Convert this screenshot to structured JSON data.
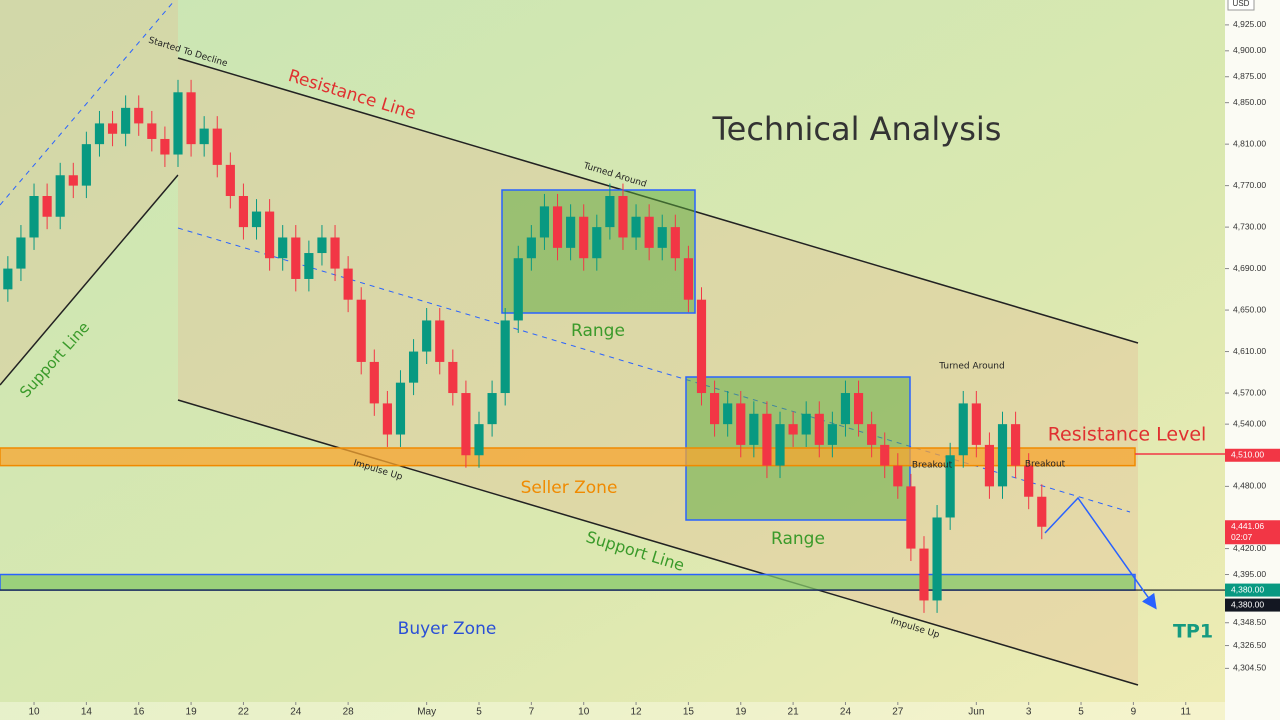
{
  "chart_data": {
    "type": "candlestick",
    "title": "Technical Analysis",
    "currency": "USD",
    "up_color": "#089981",
    "down_color": "#f23645",
    "x": [
      -1,
      -0.5,
      0,
      0.5,
      1,
      1.5,
      2,
      2.5,
      3,
      3.5,
      4,
      4.5,
      5,
      5.5,
      6,
      6.5,
      7,
      7.5,
      8,
      8.5,
      9,
      9.5,
      10,
      10.5,
      11,
      11.5,
      12,
      12.5,
      13,
      13.5,
      14,
      14.5,
      15,
      15.5,
      16,
      16.5,
      17,
      17.5,
      18,
      18.5,
      19,
      19.5,
      20,
      20.5,
      21,
      21.5,
      22,
      22.5,
      23,
      23.5,
      24,
      24.5,
      25,
      25.5,
      26,
      26.5,
      27,
      27.5,
      28,
      28.5,
      29,
      29.5,
      30,
      30.5,
      31,
      31.5,
      32,
      32.5,
      33,
      33.5,
      34,
      34.5,
      35,
      35.5,
      36,
      36.5,
      37,
      37.5,
      38,
      38.5
    ],
    "open": [
      4670,
      4690,
      4720,
      4760,
      4740,
      4780,
      4770,
      4810,
      4830,
      4820,
      4845,
      4830,
      4815,
      4800,
      4860,
      4810,
      4825,
      4790,
      4760,
      4730,
      4745,
      4700,
      4720,
      4680,
      4705,
      4720,
      4690,
      4660,
      4600,
      4560,
      4530,
      4580,
      4610,
      4640,
      4600,
      4570,
      4510,
      4540,
      4570,
      4640,
      4700,
      4720,
      4750,
      4710,
      4740,
      4700,
      4730,
      4760,
      4720,
      4740,
      4710,
      4730,
      4700,
      4660,
      4570,
      4540,
      4560,
      4520,
      4550,
      4500,
      4540,
      4530,
      4550,
      4520,
      4540,
      4570,
      4540,
      4520,
      4500,
      4480,
      4420,
      4370,
      4450,
      4510,
      4560,
      4520,
      4480,
      4540,
      4500,
      4470
    ],
    "high": [
      4702,
      4732,
      4772,
      4772,
      4792,
      4792,
      4822,
      4842,
      4842,
      4857,
      4857,
      4842,
      4827,
      4872,
      4872,
      4837,
      4837,
      4802,
      4772,
      4757,
      4757,
      4732,
      4732,
      4717,
      4732,
      4732,
      4702,
      4672,
      4612,
      4572,
      4592,
      4622,
      4652,
      4652,
      4612,
      4582,
      4552,
      4582,
      4652,
      4712,
      4732,
      4762,
      4762,
      4752,
      4752,
      4742,
      4772,
      4772,
      4752,
      4752,
      4742,
      4742,
      4712,
      4672,
      4582,
      4572,
      4572,
      4562,
      4562,
      4552,
      4552,
      4562,
      4562,
      4552,
      4582,
      4582,
      4552,
      4532,
      4512,
      4492,
      4432,
      4462,
      4522,
      4572,
      4572,
      4532,
      4552,
      4552,
      4512,
      4482
    ],
    "low": [
      4658,
      4678,
      4708,
      4728,
      4728,
      4758,
      4758,
      4798,
      4808,
      4808,
      4818,
      4803,
      4788,
      4788,
      4798,
      4798,
      4778,
      4748,
      4718,
      4718,
      4688,
      4688,
      4668,
      4668,
      4693,
      4678,
      4648,
      4588,
      4548,
      4518,
      4518,
      4568,
      4598,
      4588,
      4558,
      4498,
      4498,
      4528,
      4558,
      4628,
      4688,
      4708,
      4698,
      4698,
      4688,
      4688,
      4718,
      4708,
      4708,
      4698,
      4698,
      4688,
      4648,
      4558,
      4528,
      4528,
      4508,
      4508,
      4488,
      4488,
      4518,
      4518,
      4508,
      4508,
      4528,
      4528,
      4508,
      4488,
      4468,
      4408,
      4358,
      4358,
      4438,
      4498,
      4508,
      4468,
      4468,
      4488,
      4458,
      4429.06
    ],
    "close": [
      4690,
      4720,
      4760,
      4740,
      4780,
      4770,
      4810,
      4830,
      4820,
      4845,
      4830,
      4815,
      4800,
      4860,
      4810,
      4825,
      4790,
      4760,
      4730,
      4745,
      4700,
      4720,
      4680,
      4705,
      4720,
      4690,
      4660,
      4600,
      4560,
      4530,
      4580,
      4610,
      4640,
      4600,
      4570,
      4510,
      4540,
      4570,
      4640,
      4700,
      4720,
      4750,
      4710,
      4740,
      4700,
      4730,
      4760,
      4720,
      4740,
      4710,
      4730,
      4700,
      4660,
      4570,
      4540,
      4560,
      4520,
      4550,
      4500,
      4540,
      4530,
      4550,
      4520,
      4540,
      4570,
      4540,
      4520,
      4500,
      4480,
      4420,
      4370,
      4450,
      4510,
      4560,
      4520,
      4480,
      4540,
      4500,
      4470,
      4441.06
    ],
    "xlim": [
      -1.3,
      45.5
    ],
    "xticks": [
      {
        "value": 0,
        "label": "10"
      },
      {
        "value": 2,
        "label": "14"
      },
      {
        "value": 4,
        "label": "16"
      },
      {
        "value": 6,
        "label": "19"
      },
      {
        "value": 8,
        "label": "22"
      },
      {
        "value": 10,
        "label": "24"
      },
      {
        "value": 12,
        "label": "28"
      },
      {
        "value": 15,
        "label": "May"
      },
      {
        "value": 17,
        "label": "5"
      },
      {
        "value": 19,
        "label": "7"
      },
      {
        "value": 21,
        "label": "10"
      },
      {
        "value": 23,
        "label": "12"
      },
      {
        "value": 25,
        "label": "15"
      },
      {
        "value": 27,
        "label": "19"
      },
      {
        "value": 29,
        "label": "21"
      },
      {
        "value": 31,
        "label": "24"
      },
      {
        "value": 33,
        "label": "27"
      },
      {
        "value": 36,
        "label": "Jun"
      },
      {
        "value": 38,
        "label": "3"
      },
      {
        "value": 40,
        "label": "5"
      },
      {
        "value": 42,
        "label": "9"
      },
      {
        "value": 44,
        "label": "11"
      }
    ],
    "ylim": [
      4274,
      4949
    ],
    "yticks": [
      {
        "value": 4925,
        "label": "4,925.00"
      },
      {
        "value": 4900,
        "label": "4,900.00"
      },
      {
        "value": 4875,
        "label": "4,875.00"
      },
      {
        "value": 4850,
        "label": "4,850.00"
      },
      {
        "value": 4810,
        "label": "4,810.00"
      },
      {
        "value": 4770,
        "label": "4,770.00"
      },
      {
        "value": 4730,
        "label": "4,730.00"
      },
      {
        "value": 4690,
        "label": "4,690.00"
      },
      {
        "value": 4650,
        "label": "4,650.00"
      },
      {
        "value": 4610,
        "label": "4,610.00"
      },
      {
        "value": 4570,
        "label": "4,570.00"
      },
      {
        "value": 4540,
        "label": "4,540.00"
      },
      {
        "value": 4480,
        "label": "4,480.00"
      },
      {
        "value": 4420,
        "label": "4,420.00"
      },
      {
        "value": 4395,
        "label": "4,395.00"
      },
      {
        "value": 4348.5,
        "label": "4,348.50"
      },
      {
        "value": 4326.5,
        "label": "4,326.50"
      },
      {
        "value": 4304.5,
        "label": "4,304.50"
      }
    ],
    "zones": [
      {
        "name": "Seller Zone",
        "from": 4500,
        "to": 4517,
        "color": "#f7a530"
      },
      {
        "name": "Buyer Zone",
        "from": 4380,
        "to": 4395,
        "color": "#86c86a"
      }
    ],
    "price_tags": [
      {
        "value": 4510,
        "label": "4,510.00",
        "color": "#f23645"
      },
      {
        "value": 4441.06,
        "label": "4,441.06",
        "sublabel": "02:07",
        "color": "#f23645"
      },
      {
        "value": 4380,
        "label": "4,380.00",
        "color": "#089981"
      },
      {
        "value": 4380,
        "label": "4,380.00",
        "color": "#131722"
      }
    ],
    "annotations": [
      "Resistance Line",
      "Support Line",
      "Support Line",
      "Started To Decline",
      "Turned Around",
      "Turned Around",
      "Impulse Up",
      "Impulse Up",
      "Breakout",
      "Breakout",
      "Range",
      "Range",
      "Resistance Level",
      "TP1"
    ],
    "grid": false
  }
}
